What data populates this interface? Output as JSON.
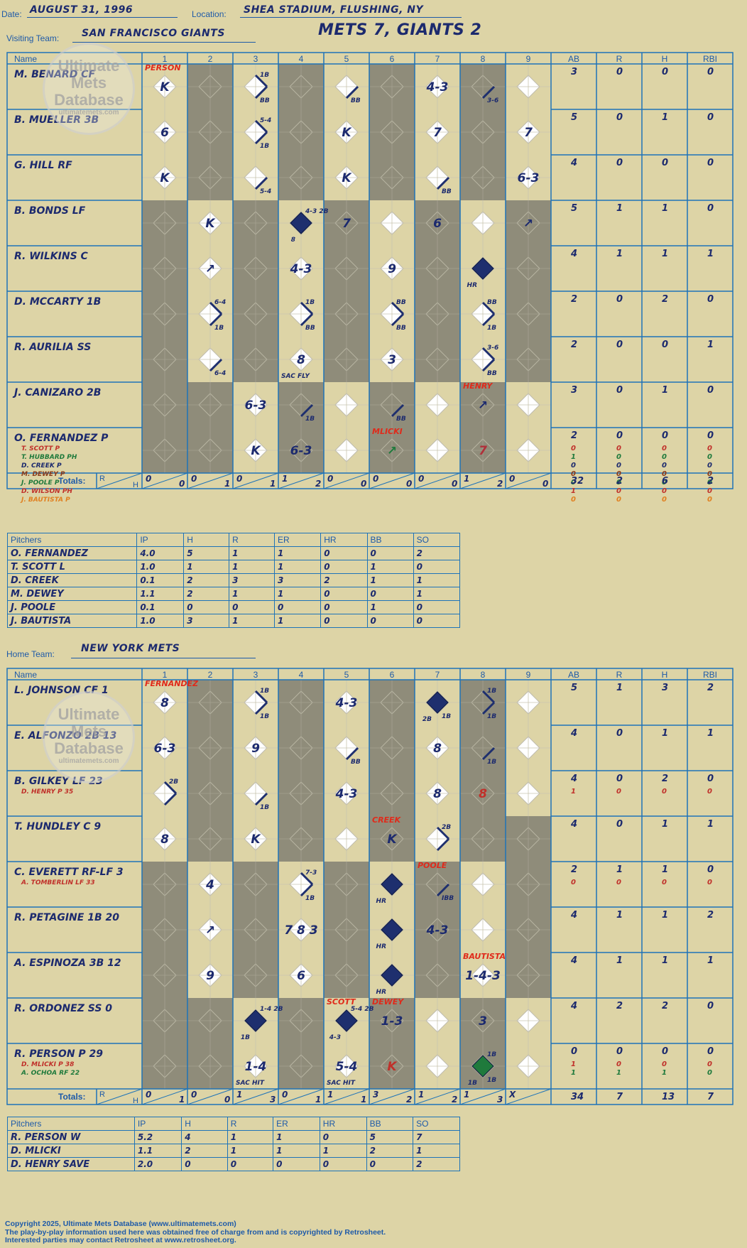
{
  "header": {
    "date_label": "Date:",
    "date": "AUGUST 31, 1996",
    "location_label": "Location:",
    "location": "SHEA STADIUM, FLUSHING, NY",
    "visiting_label": "Visiting Team:",
    "visiting_team": "SAN FRANCISCO GIANTS",
    "result": "METS 7, GIANTS 2",
    "home_label": "Home Team:",
    "home_team": "NEW YORK METS"
  },
  "watermark": {
    "line1": "Ultimate",
    "line2": "Mets",
    "line3": "Database",
    "url": "ultimatemets.com"
  },
  "grid_headers": {
    "name": "Name",
    "innings": [
      "1",
      "2",
      "3",
      "4",
      "5",
      "6",
      "7",
      "8",
      "9"
    ],
    "stats": [
      "AB",
      "R",
      "H",
      "RBI"
    ],
    "totals": "Totals:",
    "r": "R",
    "h": "H"
  },
  "visitors": {
    "shaded": [
      [
        2,
        4,
        6,
        8
      ],
      [
        2,
        4,
        6,
        8
      ],
      [
        2,
        4,
        6,
        8
      ],
      [
        1,
        3,
        5,
        7,
        9
      ],
      [
        1,
        3,
        5,
        7,
        9
      ],
      [
        1,
        3,
        5,
        7,
        9
      ],
      [
        1,
        3,
        5,
        7,
        9
      ],
      [
        1,
        2,
        4,
        6,
        8
      ],
      [
        1,
        2,
        4,
        6,
        8
      ]
    ],
    "batters": [
      {
        "name": "M. BENARD CF",
        "subs": [],
        "stats": [
          "3",
          "0",
          "0",
          "0"
        ]
      },
      {
        "name": "B. MUELLER 3B",
        "subs": [],
        "stats": [
          "5",
          "0",
          "1",
          "0"
        ]
      },
      {
        "name": "G. HILL RF",
        "subs": [],
        "stats": [
          "4",
          "0",
          "0",
          "0"
        ]
      },
      {
        "name": "B. BONDS LF",
        "subs": [],
        "stats": [
          "5",
          "1",
          "1",
          "0"
        ]
      },
      {
        "name": "R. WILKINS C",
        "subs": [],
        "stats": [
          "4",
          "1",
          "1",
          "1"
        ]
      },
      {
        "name": "D. MCCARTY 1B",
        "subs": [],
        "stats": [
          "2",
          "0",
          "2",
          "0"
        ]
      },
      {
        "name": "R. AURILIA SS",
        "subs": [],
        "stats": [
          "2",
          "0",
          "0",
          "1"
        ]
      },
      {
        "name": "J. CANIZARO 2B",
        "subs": [],
        "stats": [
          "3",
          "0",
          "1",
          "0"
        ]
      },
      {
        "name": "O. FERNANDEZ P",
        "subs": [
          {
            "name": "T. SCOTT P",
            "color": "#c0302a",
            "stats": [
              "0",
              "0",
              "0",
              "0"
            ]
          },
          {
            "name": "T. HUBBARD PH",
            "color": "#1f7a3c",
            "stats": [
              "1",
              "0",
              "0",
              "0"
            ]
          },
          {
            "name": "D. CREEK P",
            "color": "#1c2a6e",
            "stats": [
              "0",
              "0",
              "0",
              "0"
            ]
          },
          {
            "name": "M. DEWEY P",
            "color": "#8a3a1a",
            "stats": [
              "0",
              "0",
              "0",
              "0"
            ]
          },
          {
            "name": "J. POOLE P",
            "color": "#1f7a3c",
            "stats": [
              "0",
              "0",
              "0",
              "0"
            ]
          },
          {
            "name": "D. WILSON PH",
            "color": "#c0302a",
            "stats": [
              "1",
              "0",
              "0",
              "0"
            ]
          },
          {
            "name": "J. BAUTISTA P",
            "color": "#e08020",
            "stats": [
              "0",
              "0",
              "0",
              "0"
            ]
          }
        ],
        "stats": [
          "2",
          "0",
          "0",
          "0"
        ]
      }
    ],
    "plays": [
      {
        "r": 0,
        "i": 1,
        "t": "K"
      },
      {
        "r": 0,
        "i": 3,
        "path": 1,
        "tr": "1B",
        "br": "BB"
      },
      {
        "r": 0,
        "i": 5,
        "path": 1,
        "br": "BB"
      },
      {
        "r": 0,
        "i": 7,
        "t": "4-3"
      },
      {
        "r": 0,
        "i": 8,
        "path": 1,
        "br": "3-6"
      },
      {
        "r": 1,
        "i": 1,
        "t": "6"
      },
      {
        "r": 1,
        "i": 3,
        "path": 1,
        "tr": "5-4",
        "br": "1B"
      },
      {
        "r": 1,
        "i": 5,
        "t": "K"
      },
      {
        "r": 1,
        "i": 7,
        "t": "7"
      },
      {
        "r": 1,
        "i": 9,
        "t": "7"
      },
      {
        "r": 2,
        "i": 1,
        "t": "K"
      },
      {
        "r": 2,
        "i": 3,
        "path": 1,
        "br": "5-4"
      },
      {
        "r": 2,
        "i": 5,
        "t": "K"
      },
      {
        "r": 2,
        "i": 7,
        "path": 1,
        "br": "BB"
      },
      {
        "r": 2,
        "i": 9,
        "t": "6-3"
      },
      {
        "r": 3,
        "i": 2,
        "t": "K"
      },
      {
        "r": 3,
        "i": 4,
        "fill": 1,
        "tr": "4-3 2B",
        "bl": "8"
      },
      {
        "r": 3,
        "i": 5,
        "t": "7"
      },
      {
        "r": 3,
        "i": 7,
        "t": "6"
      },
      {
        "r": 3,
        "i": 9,
        "t": "↗"
      },
      {
        "r": 4,
        "i": 2,
        "t": "↗"
      },
      {
        "r": 4,
        "i": 4,
        "t": "4-3"
      },
      {
        "r": 4,
        "i": 6,
        "t": "9"
      },
      {
        "r": 4,
        "i": 8,
        "fill": 1,
        "bl": "HR"
      },
      {
        "r": 5,
        "i": 2,
        "path": 1,
        "tr": "6-4",
        "br": "1B"
      },
      {
        "r": 5,
        "i": 4,
        "path": 1,
        "tr": "1B",
        "br": "BB"
      },
      {
        "r": 5,
        "i": 6,
        "path": 1,
        "tr": "BB",
        "br": "BB"
      },
      {
        "r": 5,
        "i": 8,
        "path": 1,
        "tr": "BB",
        "br": "1B"
      },
      {
        "r": 6,
        "i": 2,
        "path": 1,
        "br": "6-4"
      },
      {
        "r": 6,
        "i": 4,
        "t": "8",
        "bl": "SAC FLY"
      },
      {
        "r": 6,
        "i": 6,
        "t": "3"
      },
      {
        "r": 6,
        "i": 8,
        "path": 1,
        "tr": "3-6",
        "br": "BB"
      },
      {
        "r": 7,
        "i": 3,
        "t": "6-3"
      },
      {
        "r": 7,
        "i": 4,
        "path": 1,
        "br": "1B"
      },
      {
        "r": 7,
        "i": 6,
        "path": 1,
        "br": "BB"
      },
      {
        "r": 7,
        "i": 8,
        "t": "↗"
      },
      {
        "r": 8,
        "i": 3,
        "t": "K"
      },
      {
        "r": 8,
        "i": 4,
        "t": "6-3"
      },
      {
        "r": 8,
        "i": 6,
        "t": "↗",
        "color": "#1f7a3c"
      },
      {
        "r": 8,
        "i": 8,
        "t": "7",
        "color": "#b0303a"
      }
    ],
    "notes": [
      {
        "r": 0,
        "i": 1,
        "t": "PERSON"
      },
      {
        "r": 7,
        "i": 8,
        "t": "HENRY"
      },
      {
        "r": 8,
        "i": 6,
        "t": "MLICKI"
      }
    ],
    "totals_rh": [
      [
        "0",
        "0"
      ],
      [
        "0",
        "1"
      ],
      [
        "0",
        "1"
      ],
      [
        "1",
        "2"
      ],
      [
        "0",
        "0"
      ],
      [
        "0",
        "0"
      ],
      [
        "0",
        "0"
      ],
      [
        "1",
        "2"
      ],
      [
        "0",
        "0"
      ]
    ],
    "totals_stats": [
      "32",
      "2",
      "6",
      "2"
    ]
  },
  "visitors_pitching": {
    "headers": [
      "Pitchers",
      "IP",
      "H",
      "R",
      "ER",
      "HR",
      "BB",
      "SO"
    ],
    "rows": [
      [
        "O. FERNANDEZ",
        "4.0",
        "5",
        "1",
        "1",
        "0",
        "0",
        "2"
      ],
      [
        "T. SCOTT L",
        "1.0",
        "1",
        "1",
        "1",
        "0",
        "1",
        "0"
      ],
      [
        "D. CREEK",
        "0.1",
        "2",
        "3",
        "3",
        "2",
        "1",
        "1"
      ],
      [
        "M. DEWEY",
        "1.1",
        "2",
        "1",
        "1",
        "0",
        "0",
        "1"
      ],
      [
        "J. POOLE",
        "0.1",
        "0",
        "0",
        "0",
        "0",
        "1",
        "0"
      ],
      [
        "J. BAUTISTA",
        "1.0",
        "3",
        "1",
        "1",
        "0",
        "0",
        "0"
      ]
    ]
  },
  "home": {
    "shaded": [
      [
        2,
        4,
        6,
        8
      ],
      [
        2,
        4,
        6,
        8
      ],
      [
        2,
        4,
        6,
        8
      ],
      [
        2,
        4,
        6,
        8,
        9
      ],
      [
        1,
        3,
        5,
        7,
        9
      ],
      [
        1,
        3,
        5,
        7,
        9
      ],
      [
        1,
        3,
        5,
        7,
        9
      ],
      [
        1,
        2,
        4,
        6,
        8
      ],
      [
        1,
        2,
        4,
        6,
        8
      ]
    ],
    "batters": [
      {
        "name": "L. JOHNSON CF 1",
        "subs": [],
        "stats": [
          "5",
          "1",
          "3",
          "2"
        ]
      },
      {
        "name": "E. ALFONZO 2B 13",
        "subs": [],
        "stats": [
          "4",
          "0",
          "1",
          "1"
        ]
      },
      {
        "name": "B. GILKEY LF 23",
        "subs": [
          {
            "name": "D. HENRY P 35",
            "color": "#c0302a",
            "stats": [
              "1",
              "0",
              "0",
              "0"
            ]
          }
        ],
        "stats": [
          "4",
          "0",
          "2",
          "0"
        ]
      },
      {
        "name": "T. HUNDLEY C 9",
        "subs": [],
        "stats": [
          "4",
          "0",
          "1",
          "1"
        ]
      },
      {
        "name": "C. EVERETT RF-LF 3",
        "subs": [
          {
            "name": "A. TOMBERLIN LF 33",
            "color": "#c0302a",
            "stats": [
              "0",
              "0",
              "0",
              "0"
            ]
          }
        ],
        "stats": [
          "2",
          "1",
          "1",
          "0"
        ]
      },
      {
        "name": "R. PETAGINE 1B 20",
        "subs": [],
        "stats": [
          "4",
          "1",
          "1",
          "2"
        ]
      },
      {
        "name": "A. ESPINOZA 3B 12",
        "subs": [],
        "stats": [
          "4",
          "1",
          "1",
          "1"
        ]
      },
      {
        "name": "R. ORDONEZ SS 0",
        "subs": [],
        "stats": [
          "4",
          "2",
          "2",
          "0"
        ]
      },
      {
        "name": "R. PERSON P 29",
        "subs": [
          {
            "name": "D. MLICKI P 38",
            "color": "#c0302a",
            "stats": [
              "1",
              "0",
              "0",
              "0"
            ]
          },
          {
            "name": "A. OCHOA RF 22",
            "color": "#1f7a3c",
            "stats": [
              "1",
              "1",
              "1",
              "0"
            ]
          }
        ],
        "stats": [
          "0",
          "0",
          "0",
          "0"
        ]
      }
    ],
    "plays": [
      {
        "r": 0,
        "i": 1,
        "t": "8"
      },
      {
        "r": 0,
        "i": 3,
        "path": 1,
        "tr": "1B",
        "br": "1B"
      },
      {
        "r": 0,
        "i": 5,
        "t": "4-3"
      },
      {
        "r": 0,
        "i": 7,
        "fill": 1,
        "bl": "2B",
        "br": "1B"
      },
      {
        "r": 0,
        "i": 8,
        "path": 1,
        "tr": "1B",
        "br": "1B"
      },
      {
        "r": 1,
        "i": 1,
        "t": "6-3"
      },
      {
        "r": 1,
        "i": 3,
        "t": "9"
      },
      {
        "r": 1,
        "i": 5,
        "path": 1,
        "br": "BB"
      },
      {
        "r": 1,
        "i": 7,
        "t": "8"
      },
      {
        "r": 1,
        "i": 8,
        "path": 1,
        "br": "1B"
      },
      {
        "r": 2,
        "i": 1,
        "path": 1,
        "tr": "2B"
      },
      {
        "r": 2,
        "i": 3,
        "path": 1,
        "br": "1B"
      },
      {
        "r": 2,
        "i": 5,
        "t": "4-3"
      },
      {
        "r": 2,
        "i": 7,
        "t": "8"
      },
      {
        "r": 2,
        "i": 8,
        "t": "8",
        "color": "#c0302a"
      },
      {
        "r": 3,
        "i": 1,
        "t": "8"
      },
      {
        "r": 3,
        "i": 3,
        "t": "K"
      },
      {
        "r": 3,
        "i": 6,
        "t": "K"
      },
      {
        "r": 3,
        "i": 7,
        "path": 1,
        "tr": "2B"
      },
      {
        "r": 4,
        "i": 2,
        "t": "4"
      },
      {
        "r": 4,
        "i": 4,
        "path": 1,
        "tr": "7-3",
        "br": "1B"
      },
      {
        "r": 4,
        "i": 6,
        "fill": 1,
        "bl": "HR"
      },
      {
        "r": 4,
        "i": 7,
        "path": 1,
        "br": "IBB"
      },
      {
        "r": 5,
        "i": 2,
        "t": "↗"
      },
      {
        "r": 5,
        "i": 4,
        "t": "7 8 3"
      },
      {
        "r": 5,
        "i": 6,
        "fill": 1,
        "bl": "HR"
      },
      {
        "r": 5,
        "i": 7,
        "t": "4-3"
      },
      {
        "r": 6,
        "i": 2,
        "t": "9"
      },
      {
        "r": 6,
        "i": 4,
        "t": "6"
      },
      {
        "r": 6,
        "i": 6,
        "fill": 1,
        "bl": "HR"
      },
      {
        "r": 6,
        "i": 8,
        "t": "1-4-3"
      },
      {
        "r": 7,
        "i": 3,
        "fill": 1,
        "tr": "1-4 2B",
        "bl": "1B"
      },
      {
        "r": 7,
        "i": 5,
        "fill": 1,
        "tr": "5-4 2B",
        "bl": "4-3"
      },
      {
        "r": 7,
        "i": 6,
        "t": "1-3"
      },
      {
        "r": 7,
        "i": 8,
        "t": "3"
      },
      {
        "r": 8,
        "i": 3,
        "t": "1-4",
        "bl": "SAC HIT"
      },
      {
        "r": 8,
        "i": 5,
        "t": "5-4",
        "bl": "SAC HIT"
      },
      {
        "r": 8,
        "i": 6,
        "t": "K",
        "color": "#c0302a"
      },
      {
        "r": 8,
        "i": 8,
        "fill": 1,
        "fillc": "#1f7a3c",
        "tr": "1B",
        "bl": "1B",
        "br": "1B"
      }
    ],
    "notes": [
      {
        "r": 0,
        "i": 1,
        "t": "FERNANDEZ"
      },
      {
        "r": 3,
        "i": 6,
        "t": "CREEK"
      },
      {
        "r": 4,
        "i": 7,
        "t": "POOLE"
      },
      {
        "r": 6,
        "i": 8,
        "t": "BAUTISTA"
      },
      {
        "r": 7,
        "i": 5,
        "t": "SCOTT"
      },
      {
        "r": 7,
        "i": 6,
        "t": "DEWEY"
      }
    ],
    "totals_rh": [
      [
        "0",
        "1"
      ],
      [
        "0",
        "0"
      ],
      [
        "1",
        "3"
      ],
      [
        "0",
        "1"
      ],
      [
        "1",
        "1"
      ],
      [
        "3",
        "2"
      ],
      [
        "1",
        "2"
      ],
      [
        "1",
        "3"
      ],
      [
        "X",
        ""
      ]
    ],
    "totals_stats": [
      "34",
      "7",
      "13",
      "7"
    ]
  },
  "home_pitching": {
    "headers": [
      "Pitchers",
      "IP",
      "H",
      "R",
      "ER",
      "HR",
      "BB",
      "SO"
    ],
    "rows": [
      [
        "R. PERSON W",
        "5.2",
        "4",
        "1",
        "1",
        "0",
        "5",
        "7"
      ],
      [
        "D. MLICKI",
        "1.1",
        "2",
        "1",
        "1",
        "1",
        "2",
        "1"
      ],
      [
        "D. HENRY SAVE",
        "2.0",
        "0",
        "0",
        "0",
        "0",
        "0",
        "2"
      ]
    ]
  },
  "footer": {
    "line1": "Copyright 2025, Ultimate Mets Database (www.ultimatemets.com)",
    "line2": "The play-by-play information used here was obtained free of charge from and is copyrighted by Retrosheet.",
    "line3": "Interested parties may contact Retrosheet at www.retrosheet.org."
  }
}
